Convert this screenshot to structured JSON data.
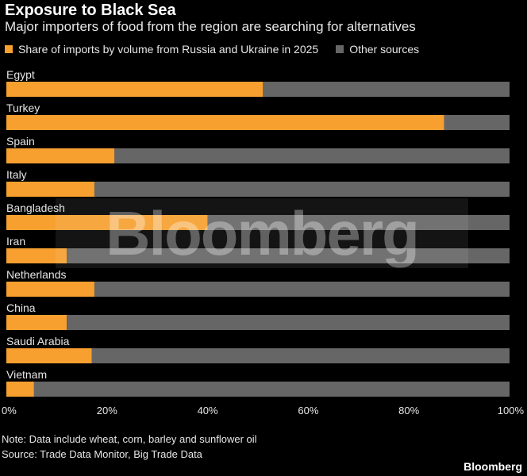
{
  "header": {
    "title": "Exposure to Black Sea",
    "subtitle": "Major importers of food from the region are searching for alternatives"
  },
  "colors": {
    "primary_series": "#f7a030",
    "other_series": "#666666",
    "background": "#000000"
  },
  "footer": {
    "note": "Note: Data include wheat, corn, barley and sunflower oil",
    "source": "Source: Trade Data Monitor, Big Trade Data",
    "brand": "Bloomberg"
  },
  "watermark": "Bloomberg",
  "chart_data": {
    "type": "bar",
    "orientation": "horizontal",
    "stacked": true,
    "categories": [
      "Egypt",
      "Turkey",
      "Spain",
      "Italy",
      "Bangladesh",
      "Iran",
      "Netherlands",
      "China",
      "Saudi Arabia",
      "Vietnam"
    ],
    "series": [
      {
        "name": "Share of imports by volume from Russia and Ukraine in 2025",
        "values": [
          51,
          87,
          21.5,
          17.5,
          40,
          12,
          17.5,
          12,
          17,
          5.5
        ]
      },
      {
        "name": "Other sources",
        "values": [
          49,
          13,
          78.5,
          82.5,
          60,
          88,
          82.5,
          88,
          83,
          94.5
        ]
      }
    ],
    "xlim": [
      0,
      100
    ],
    "x_ticks": [
      "0%",
      "20%",
      "40%",
      "60%",
      "80%",
      "100%"
    ],
    "legend_position": "top-left",
    "grid": false
  }
}
